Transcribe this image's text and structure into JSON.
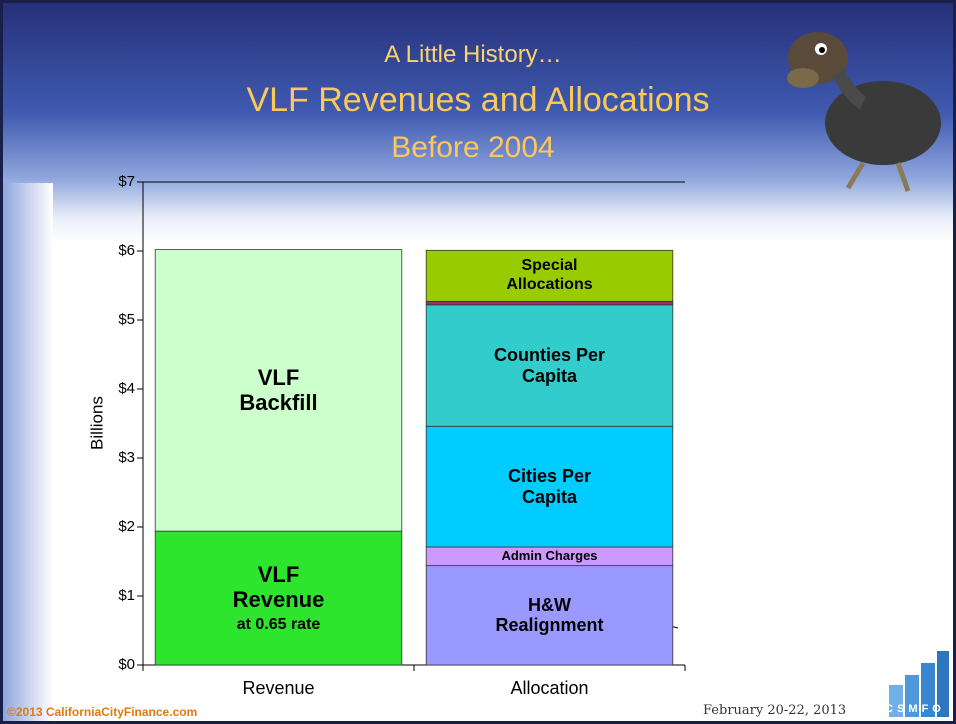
{
  "slide": {
    "kicker": "A Little History…",
    "title": "VLF Revenues and Allocations",
    "subtitle": "Before 2004"
  },
  "chart_data": {
    "type": "stacked_bar",
    "ylabel": "Billions",
    "categories": [
      "Revenue",
      "Allocation"
    ],
    "ylim": [
      0,
      7
    ],
    "yticks": [
      {
        "value": 0,
        "label": "$0"
      },
      {
        "value": 1,
        "label": "$1"
      },
      {
        "value": 2,
        "label": "$2"
      },
      {
        "value": 3,
        "label": "$3"
      },
      {
        "value": 4,
        "label": "$4"
      },
      {
        "value": 5,
        "label": "$5"
      },
      {
        "value": 6,
        "label": "$6"
      },
      {
        "value": 7,
        "label": "$7"
      }
    ],
    "series": [
      {
        "name": "VLF\nRevenue",
        "note": "at 0.65 rate",
        "color": "#2de52d",
        "values": [
          1.94,
          null
        ]
      },
      {
        "name": "VLF\nBackfill",
        "color": "#ccffcc",
        "values": [
          4.08,
          null
        ]
      },
      {
        "name": "H&W\nRealignment",
        "color": "#9999ff",
        "values": [
          null,
          1.44
        ]
      },
      {
        "name": "Admin Charges",
        "color": "#cc99ff",
        "values": [
          null,
          0.27
        ]
      },
      {
        "name": "Cities Per\nCapita",
        "color": "#00ccff",
        "values": [
          null,
          1.75
        ]
      },
      {
        "name": "Counties Per\nCapita",
        "color": "#33cccc",
        "values": [
          null,
          1.76
        ]
      },
      {
        "name": null,
        "color": "#993366",
        "values": [
          null,
          0.05
        ]
      },
      {
        "name": "Special\nAllocations",
        "color": "#99cc00",
        "values": [
          null,
          0.74
        ]
      }
    ]
  },
  "footer": {
    "copyright": "©2013 CaliforniaCityFinance.com",
    "date": "February 20-22, 2013",
    "logo": "CSMFO"
  }
}
